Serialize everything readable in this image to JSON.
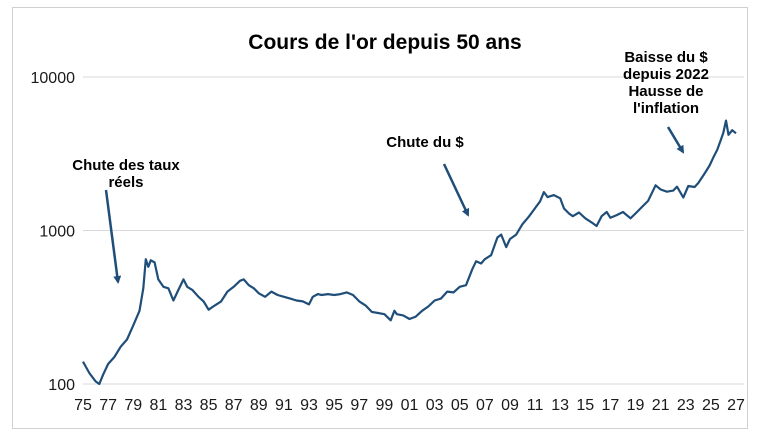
{
  "chart_data": {
    "type": "line",
    "title": "Cours de l'or depuis 50 ans",
    "xlabel": "",
    "ylabel": "",
    "y_scale": "log",
    "ylim": [
      100,
      10000
    ],
    "xlim": [
      1975,
      2027
    ],
    "grid": true,
    "y_ticks": [
      {
        "value": 100,
        "label": "100"
      },
      {
        "value": 1000,
        "label": "1000"
      },
      {
        "value": 10000,
        "label": "10000"
      }
    ],
    "x_ticks": [
      {
        "value": 1975,
        "label": "75"
      },
      {
        "value": 1977,
        "label": "77"
      },
      {
        "value": 1979,
        "label": "79"
      },
      {
        "value": 1981,
        "label": "81"
      },
      {
        "value": 1983,
        "label": "83"
      },
      {
        "value": 1985,
        "label": "85"
      },
      {
        "value": 1987,
        "label": "87"
      },
      {
        "value": 1989,
        "label": "89"
      },
      {
        "value": 1991,
        "label": "91"
      },
      {
        "value": 1993,
        "label": "93"
      },
      {
        "value": 1995,
        "label": "95"
      },
      {
        "value": 1997,
        "label": "97"
      },
      {
        "value": 1999,
        "label": "99"
      },
      {
        "value": 2001,
        "label": "01"
      },
      {
        "value": 2003,
        "label": "03"
      },
      {
        "value": 2005,
        "label": "05"
      },
      {
        "value": 2007,
        "label": "07"
      },
      {
        "value": 2009,
        "label": "09"
      },
      {
        "value": 2011,
        "label": "11"
      },
      {
        "value": 2013,
        "label": "13"
      },
      {
        "value": 2015,
        "label": "15"
      },
      {
        "value": 2017,
        "label": "17"
      },
      {
        "value": 2019,
        "label": "19"
      },
      {
        "value": 2021,
        "label": "21"
      },
      {
        "value": 2023,
        "label": "23"
      },
      {
        "value": 2025,
        "label": "25"
      },
      {
        "value": 2027,
        "label": "27"
      }
    ],
    "series": [
      {
        "color": "#1f4e79",
        "points": [
          [
            1975.0,
            140
          ],
          [
            1975.5,
            118
          ],
          [
            1976.0,
            104
          ],
          [
            1976.3,
            100
          ],
          [
            1976.6,
            115
          ],
          [
            1977.0,
            135
          ],
          [
            1977.5,
            150
          ],
          [
            1978.0,
            175
          ],
          [
            1978.5,
            195
          ],
          [
            1979.0,
            240
          ],
          [
            1979.5,
            300
          ],
          [
            1979.8,
            420
          ],
          [
            1980.0,
            650
          ],
          [
            1980.2,
            580
          ],
          [
            1980.4,
            640
          ],
          [
            1980.7,
            620
          ],
          [
            1981.0,
            480
          ],
          [
            1981.4,
            430
          ],
          [
            1981.8,
            420
          ],
          [
            1982.2,
            350
          ],
          [
            1982.6,
            410
          ],
          [
            1983.0,
            480
          ],
          [
            1983.3,
            430
          ],
          [
            1983.7,
            410
          ],
          [
            1984.2,
            370
          ],
          [
            1984.6,
            345
          ],
          [
            1985.0,
            305
          ],
          [
            1985.5,
            325
          ],
          [
            1986.0,
            345
          ],
          [
            1986.5,
            400
          ],
          [
            1987.0,
            430
          ],
          [
            1987.5,
            470
          ],
          [
            1987.8,
            480
          ],
          [
            1988.2,
            440
          ],
          [
            1988.6,
            420
          ],
          [
            1989.0,
            390
          ],
          [
            1989.5,
            370
          ],
          [
            1990.0,
            400
          ],
          [
            1990.5,
            380
          ],
          [
            1991.0,
            370
          ],
          [
            1991.5,
            360
          ],
          [
            1992.0,
            350
          ],
          [
            1992.5,
            345
          ],
          [
            1993.0,
            330
          ],
          [
            1993.3,
            370
          ],
          [
            1993.7,
            385
          ],
          [
            1994.0,
            380
          ],
          [
            1994.5,
            385
          ],
          [
            1995.0,
            380
          ],
          [
            1995.5,
            385
          ],
          [
            1996.0,
            395
          ],
          [
            1996.5,
            380
          ],
          [
            1997.0,
            345
          ],
          [
            1997.5,
            325
          ],
          [
            1998.0,
            295
          ],
          [
            1998.5,
            290
          ],
          [
            1999.0,
            285
          ],
          [
            1999.5,
            260
          ],
          [
            1999.8,
            300
          ],
          [
            2000.0,
            285
          ],
          [
            2000.5,
            280
          ],
          [
            2001.0,
            265
          ],
          [
            2001.5,
            275
          ],
          [
            2002.0,
            300
          ],
          [
            2002.5,
            320
          ],
          [
            2003.0,
            350
          ],
          [
            2003.5,
            360
          ],
          [
            2004.0,
            400
          ],
          [
            2004.5,
            395
          ],
          [
            2005.0,
            430
          ],
          [
            2005.5,
            440
          ],
          [
            2006.0,
            560
          ],
          [
            2006.3,
            630
          ],
          [
            2006.7,
            610
          ],
          [
            2007.0,
            650
          ],
          [
            2007.5,
            690
          ],
          [
            2008.0,
            900
          ],
          [
            2008.3,
            940
          ],
          [
            2008.7,
            780
          ],
          [
            2009.0,
            880
          ],
          [
            2009.5,
            940
          ],
          [
            2010.0,
            1100
          ],
          [
            2010.5,
            1230
          ],
          [
            2011.0,
            1400
          ],
          [
            2011.4,
            1550
          ],
          [
            2011.7,
            1780
          ],
          [
            2012.0,
            1650
          ],
          [
            2012.5,
            1700
          ],
          [
            2013.0,
            1620
          ],
          [
            2013.3,
            1390
          ],
          [
            2013.7,
            1290
          ],
          [
            2014.0,
            1240
          ],
          [
            2014.5,
            1310
          ],
          [
            2015.0,
            1200
          ],
          [
            2015.5,
            1130
          ],
          [
            2015.9,
            1070
          ],
          [
            2016.3,
            1240
          ],
          [
            2016.7,
            1320
          ],
          [
            2017.0,
            1210
          ],
          [
            2017.5,
            1260
          ],
          [
            2018.0,
            1320
          ],
          [
            2018.6,
            1200
          ],
          [
            2019.0,
            1290
          ],
          [
            2019.5,
            1420
          ],
          [
            2020.0,
            1560
          ],
          [
            2020.6,
            1970
          ],
          [
            2021.0,
            1850
          ],
          [
            2021.5,
            1790
          ],
          [
            2022.0,
            1820
          ],
          [
            2022.3,
            1930
          ],
          [
            2022.8,
            1640
          ],
          [
            2023.2,
            1950
          ],
          [
            2023.7,
            1920
          ],
          [
            2024.0,
            2040
          ],
          [
            2024.5,
            2350
          ],
          [
            2024.9,
            2650
          ],
          [
            2025.2,
            3000
          ],
          [
            2025.5,
            3350
          ],
          [
            2025.8,
            3900
          ],
          [
            2026.0,
            4350
          ],
          [
            2026.2,
            5200
          ],
          [
            2026.4,
            4200
          ],
          [
            2026.7,
            4500
          ],
          [
            2027.0,
            4300
          ]
        ]
      }
    ],
    "annotations": [
      {
        "lines": [
          "Chute des taux",
          "réels"
        ]
      },
      {
        "lines": [
          "Chute du $"
        ]
      },
      {
        "lines": [
          "Baisse du $",
          "depuis 2022",
          "Hausse de",
          "l'inflation"
        ]
      }
    ]
  }
}
